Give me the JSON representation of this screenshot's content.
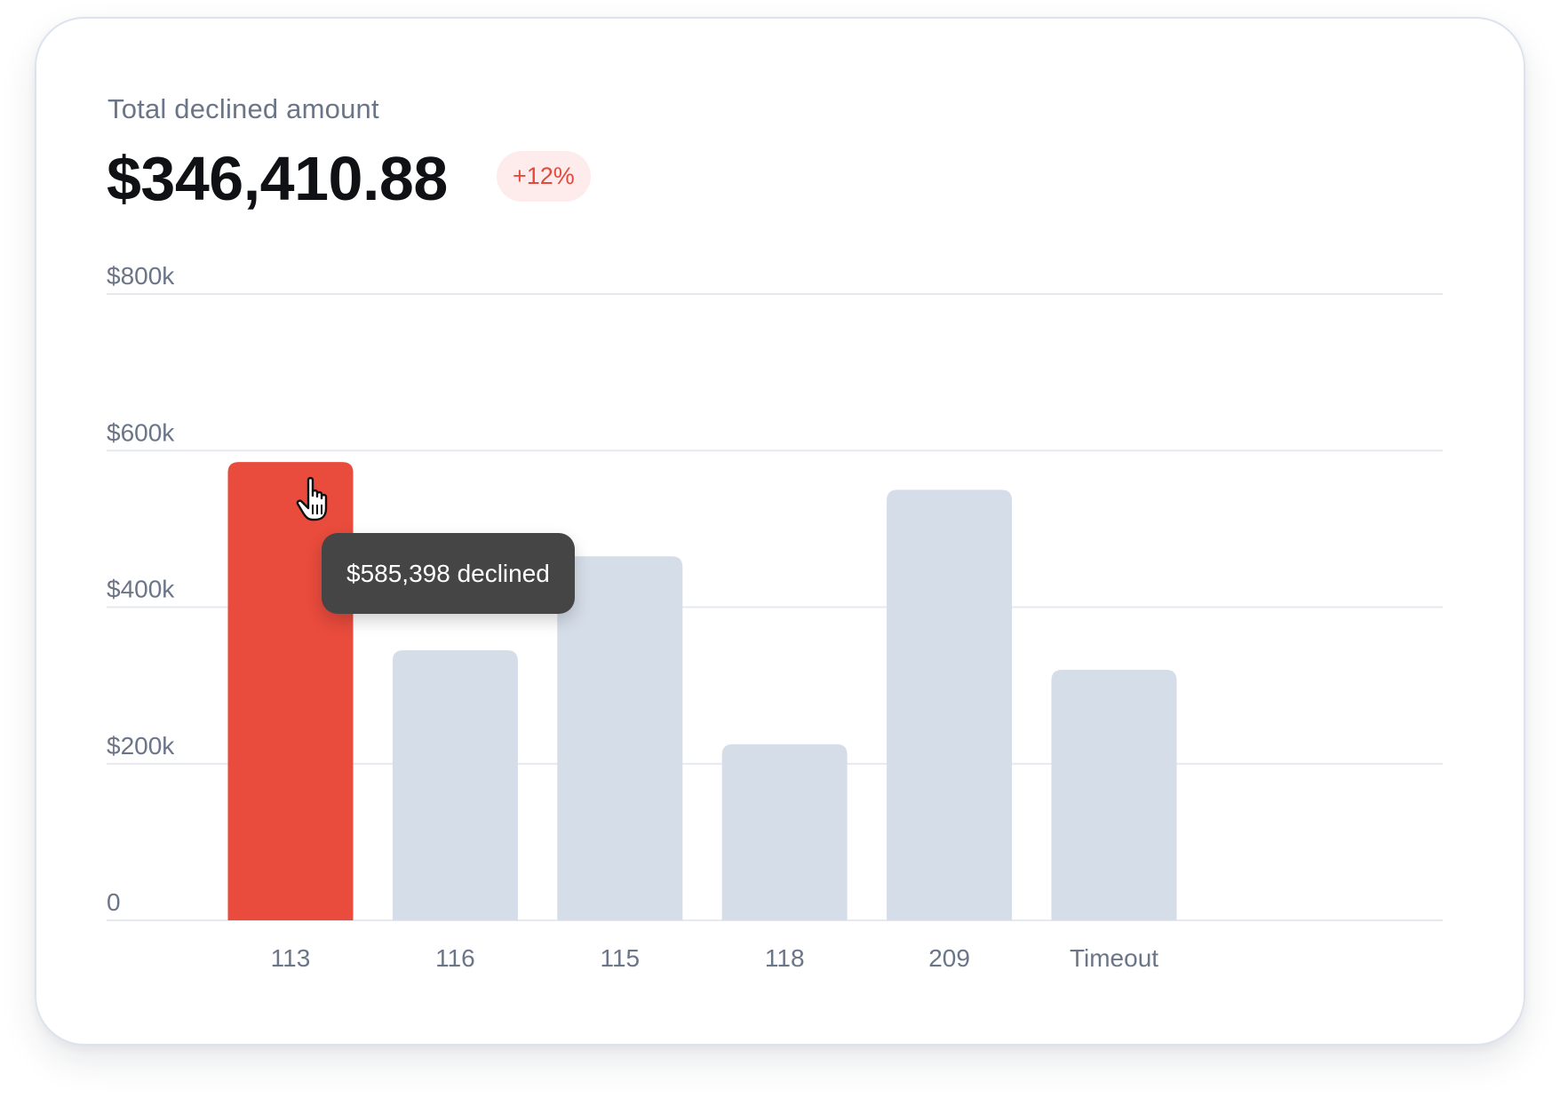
{
  "header": {
    "subtitle": "Total declined amount",
    "total": "$346,410.88",
    "change_badge": "+12%"
  },
  "tooltip": {
    "text": "$585,398 declined"
  },
  "colors": {
    "highlight_bar": "#e94b3c",
    "default_bar": "#d5dde9",
    "badge_text": "#e3493d",
    "badge_bg": "#fdeceb",
    "tooltip_bg": "#454545",
    "axis_text": "#6b7588",
    "gridline": "#e6e9f0"
  },
  "chart_data": {
    "type": "bar",
    "title": "",
    "xlabel": "",
    "ylabel": "",
    "categories": [
      "113",
      "116",
      "115",
      "118",
      "209",
      "Timeout"
    ],
    "values": [
      585398,
      345000,
      465000,
      225000,
      550000,
      320000
    ],
    "ylim": [
      0,
      800000
    ],
    "y_ticks": [
      0,
      200000,
      400000,
      600000,
      800000
    ],
    "y_tick_labels": [
      "0",
      "$200k",
      "$400k",
      "$600k",
      "$800k"
    ],
    "highlighted_category": "113",
    "grid": true,
    "legend": "none"
  }
}
